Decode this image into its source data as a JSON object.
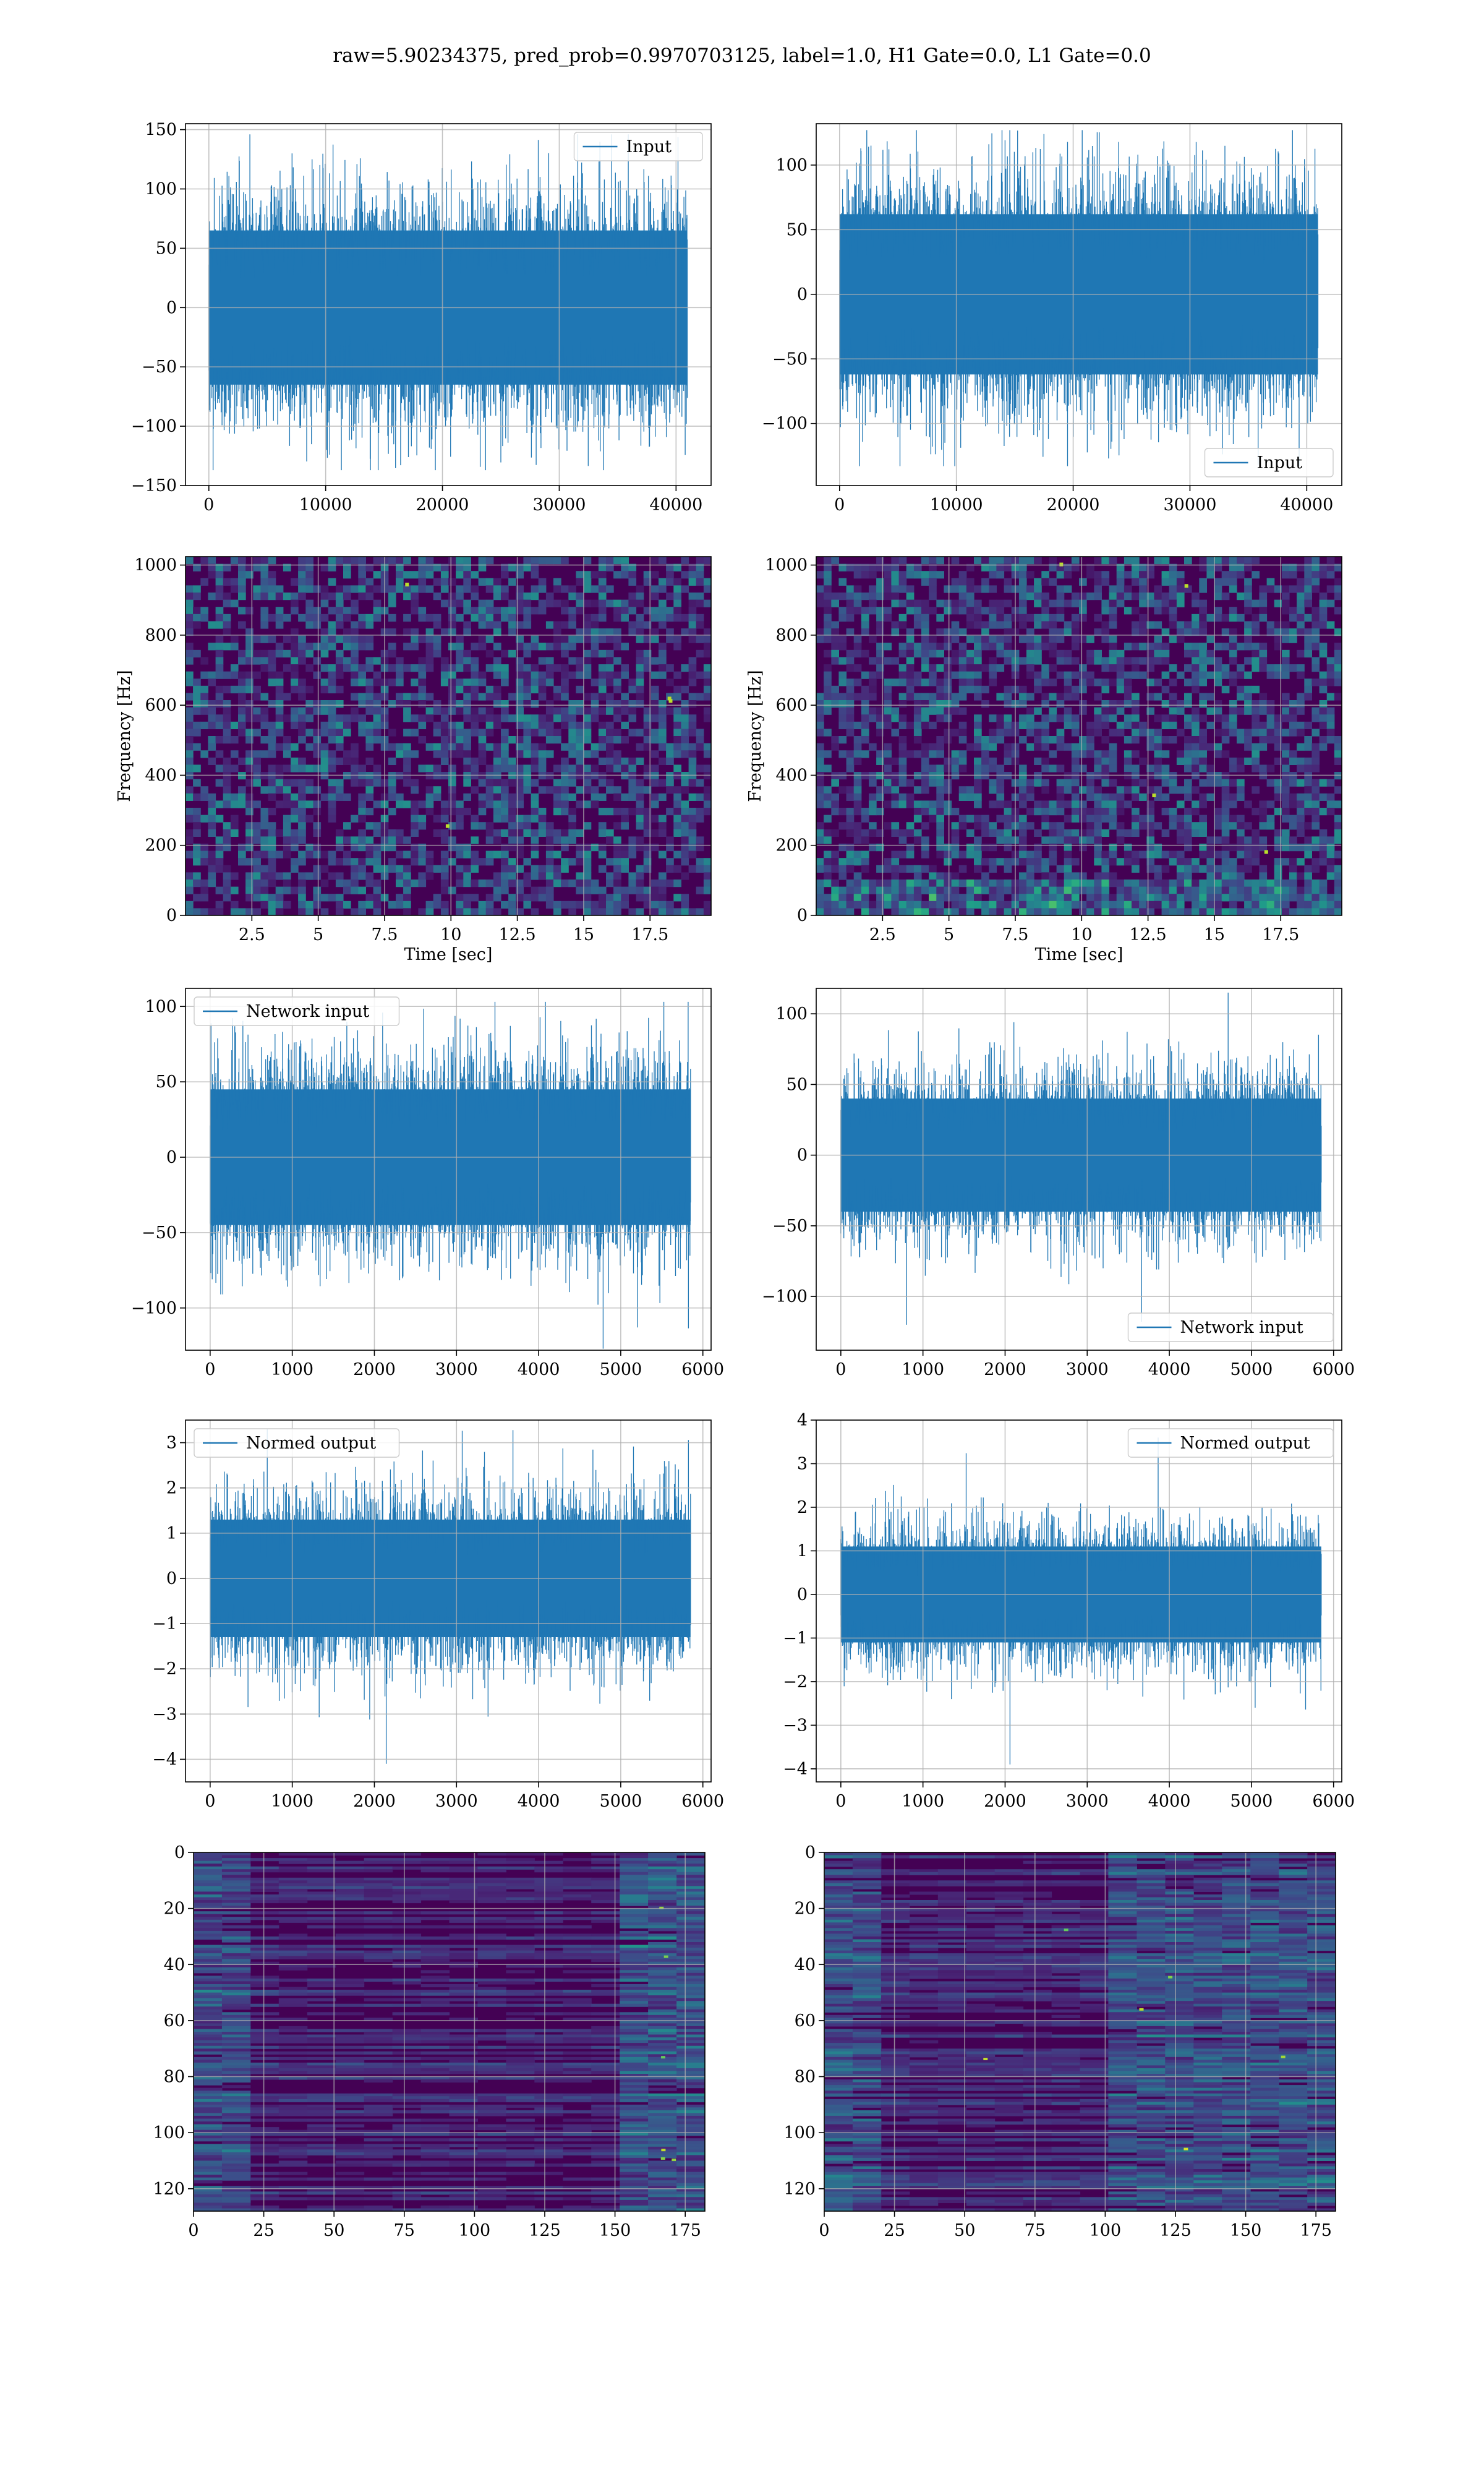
{
  "figure": {
    "title": "raw=5.90234375, pred_prob=0.9970703125, label=1.0, H1 Gate=0.0, L1 Gate=0.0",
    "colors": {
      "series": "#1f77b4",
      "grid": "#b0b0b0",
      "heat_low": "#440154",
      "heat_high": "#fde725"
    }
  },
  "chart_data": [
    {
      "id": "input_h1",
      "type": "line",
      "title": "",
      "xlabel": "",
      "ylabel": "",
      "legend": {
        "entries": [
          "Input"
        ],
        "placement": "top-right"
      },
      "xlim": [
        -2000,
        43000
      ],
      "ylim": [
        -150,
        155
      ],
      "xticks": [
        0,
        10000,
        20000,
        30000,
        40000
      ],
      "yticks": [
        -150,
        -100,
        -50,
        0,
        50,
        100,
        150
      ],
      "series": [
        {
          "name": "Input",
          "x_range": [
            0,
            40960
          ],
          "envelope": {
            "p90": 65,
            "typical_max": 100,
            "extreme_max": 146,
            "extreme_min": -137
          }
        }
      ],
      "grid": true
    },
    {
      "id": "input_l1",
      "type": "line",
      "title": "",
      "xlabel": "",
      "ylabel": "",
      "legend": {
        "entries": [
          "Input"
        ],
        "placement": "bottom-right"
      },
      "xlim": [
        -2000,
        43000
      ],
      "ylim": [
        -148,
        132
      ],
      "xticks": [
        0,
        10000,
        20000,
        30000,
        40000
      ],
      "yticks": [
        -100,
        -50,
        0,
        50,
        100
      ],
      "series": [
        {
          "name": "Input",
          "x_range": [
            0,
            40960
          ],
          "envelope": {
            "p90": 62,
            "typical_max": 95,
            "extreme_max": 127,
            "extreme_min": -133
          }
        }
      ],
      "grid": true
    },
    {
      "id": "spec_h1",
      "type": "heatmap",
      "title": "",
      "xlabel": "Time [sec]",
      "ylabel": "Frequency [Hz]",
      "xlim": [
        0,
        19.8
      ],
      "ylim": [
        0,
        1024
      ],
      "xticks": [
        2.5,
        5.0,
        7.5,
        10.0,
        12.5,
        15.0,
        17.5
      ],
      "yticks": [
        0,
        200,
        400,
        600,
        800,
        1000
      ],
      "colormap": "viridis",
      "grid": true
    },
    {
      "id": "spec_l1",
      "type": "heatmap",
      "title": "",
      "xlabel": "Time [sec]",
      "ylabel": "Frequency [Hz]",
      "xlim": [
        0,
        19.8
      ],
      "ylim": [
        0,
        1024
      ],
      "xticks": [
        2.5,
        5.0,
        7.5,
        10.0,
        12.5,
        15.0,
        17.5
      ],
      "yticks": [
        0,
        200,
        400,
        600,
        800,
        1000
      ],
      "colormap": "viridis",
      "grid": true
    },
    {
      "id": "net_h1",
      "type": "line",
      "title": "",
      "xlabel": "",
      "ylabel": "",
      "legend": {
        "entries": [
          "Network input"
        ],
        "placement": "top-left"
      },
      "xlim": [
        -300,
        6100
      ],
      "ylim": [
        -128,
        112
      ],
      "xticks": [
        0,
        1000,
        2000,
        3000,
        4000,
        5000,
        6000
      ],
      "yticks": [
        -100,
        -50,
        0,
        50,
        100
      ],
      "series": [
        {
          "name": "Network input",
          "x_range": [
            0,
            5850
          ],
          "envelope": {
            "p90": 45,
            "typical_max": 75,
            "extreme_max": 103,
            "extreme_min": -127
          }
        }
      ],
      "grid": true
    },
    {
      "id": "net_l1",
      "type": "line",
      "title": "",
      "xlabel": "",
      "ylabel": "",
      "legend": {
        "entries": [
          "Network input"
        ],
        "placement": "bottom-right"
      },
      "xlim": [
        -300,
        6100
      ],
      "ylim": [
        -138,
        118
      ],
      "xticks": [
        0,
        1000,
        2000,
        3000,
        4000,
        5000,
        6000
      ],
      "yticks": [
        -100,
        -50,
        0,
        50,
        100
      ],
      "series": [
        {
          "name": "Network input",
          "x_range": [
            0,
            5850
          ],
          "envelope": {
            "p90": 40,
            "typical_max": 70,
            "extreme_max": 115,
            "extreme_min": -120
          }
        }
      ],
      "grid": true
    },
    {
      "id": "norm_h1",
      "type": "line",
      "title": "",
      "xlabel": "",
      "ylabel": "",
      "legend": {
        "entries": [
          "Normed output"
        ],
        "placement": "top-left"
      },
      "xlim": [
        -300,
        6100
      ],
      "ylim": [
        -4.5,
        3.5
      ],
      "xticks": [
        0,
        1000,
        2000,
        3000,
        4000,
        5000,
        6000
      ],
      "yticks": [
        -4,
        -3,
        -2,
        -1,
        0,
        1,
        2,
        3
      ],
      "series": [
        {
          "name": "Normed output",
          "x_range": [
            0,
            5850
          ],
          "envelope": {
            "p90": 1.3,
            "typical_max": 2.3,
            "extreme_max": 3.3,
            "extreme_min": -4.1
          }
        }
      ],
      "grid": true
    },
    {
      "id": "norm_l1",
      "type": "line",
      "title": "",
      "xlabel": "",
      "ylabel": "",
      "legend": {
        "entries": [
          "Normed output"
        ],
        "placement": "top-right"
      },
      "xlim": [
        -300,
        6100
      ],
      "ylim": [
        -4.3,
        4.0
      ],
      "xticks": [
        0,
        1000,
        2000,
        3000,
        4000,
        5000,
        6000
      ],
      "yticks": [
        -4,
        -3,
        -2,
        -1,
        0,
        1,
        2,
        3,
        4
      ],
      "series": [
        {
          "name": "Normed output",
          "x_range": [
            0,
            5850
          ],
          "envelope": {
            "p90": 1.1,
            "typical_max": 2.4,
            "extreme_max": 3.6,
            "extreme_min": -3.9
          }
        }
      ],
      "grid": true
    },
    {
      "id": "feat_h1",
      "type": "heatmap",
      "title": "",
      "xlabel": "",
      "ylabel": "",
      "xlim": [
        0,
        182
      ],
      "ylim": [
        128,
        0
      ],
      "xticks": [
        0,
        25,
        50,
        75,
        100,
        125,
        150,
        175
      ],
      "yticks": [
        0,
        20,
        40,
        60,
        80,
        100,
        120
      ],
      "colormap": "viridis",
      "grid": true
    },
    {
      "id": "feat_l1",
      "type": "heatmap",
      "title": "",
      "xlabel": "",
      "ylabel": "",
      "xlim": [
        0,
        182
      ],
      "ylim": [
        128,
        0
      ],
      "xticks": [
        0,
        25,
        50,
        75,
        100,
        125,
        150,
        175
      ],
      "yticks": [
        0,
        20,
        40,
        60,
        80,
        100,
        120
      ],
      "colormap": "viridis",
      "grid": true
    }
  ]
}
